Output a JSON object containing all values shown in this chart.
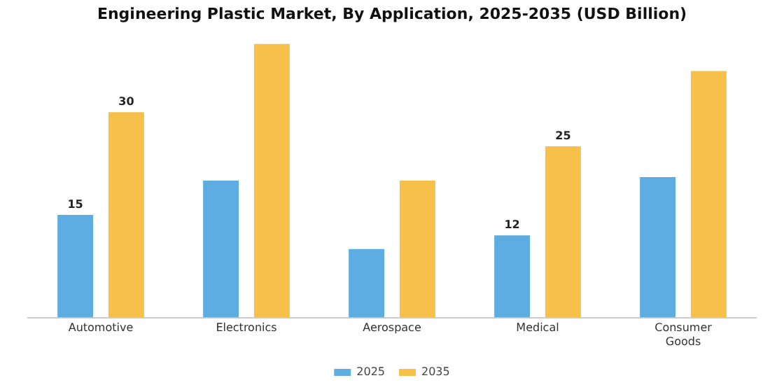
{
  "chart_data": {
    "type": "bar",
    "title": "Engineering Plastic Market, By Application, 2025-2035 (USD Billion)",
    "categories": [
      "Automotive",
      "Electronics",
      "Aerospace",
      "Medical",
      "Consumer Goods"
    ],
    "series": [
      {
        "name": "2025",
        "color": "#5dade2",
        "values": [
          15,
          20,
          10,
          12,
          20.5
        ],
        "value_labels": [
          "15",
          null,
          null,
          "12",
          null
        ]
      },
      {
        "name": "2035",
        "color": "#f7c04a",
        "values": [
          30,
          40,
          20,
          25,
          36
        ],
        "value_labels": [
          "30",
          null,
          null,
          "25",
          null
        ]
      }
    ],
    "grid": false,
    "legend": "bottom"
  }
}
